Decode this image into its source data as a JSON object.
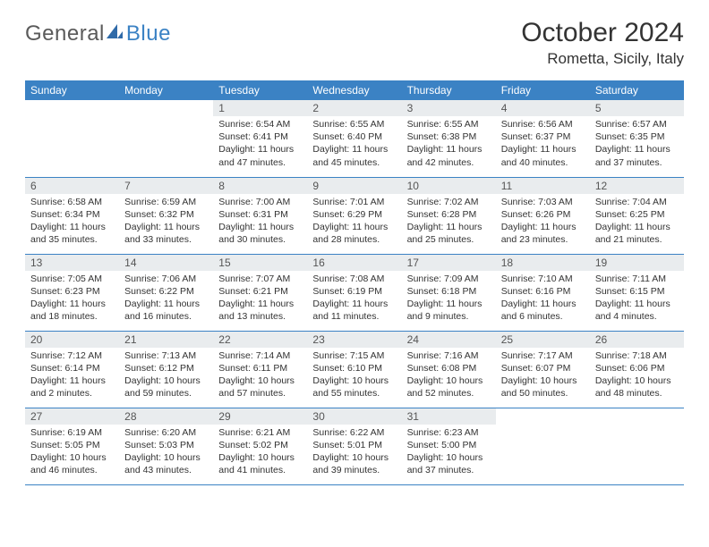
{
  "logo": {
    "text1": "General",
    "text2": "Blue"
  },
  "title": "October 2024",
  "location": "Rometta, Sicily, Italy",
  "colors": {
    "brand_blue": "#3b82c4",
    "header_bg": "#3b82c4",
    "header_text": "#ffffff",
    "daynum_bg": "#e9ecee",
    "text": "#333333",
    "page_bg": "#ffffff"
  },
  "days_of_week": [
    "Sunday",
    "Monday",
    "Tuesday",
    "Wednesday",
    "Thursday",
    "Friday",
    "Saturday"
  ],
  "weeks": [
    [
      null,
      null,
      {
        "n": "1",
        "sr": "Sunrise: 6:54 AM",
        "ss": "Sunset: 6:41 PM",
        "dl": "Daylight: 11 hours and 47 minutes."
      },
      {
        "n": "2",
        "sr": "Sunrise: 6:55 AM",
        "ss": "Sunset: 6:40 PM",
        "dl": "Daylight: 11 hours and 45 minutes."
      },
      {
        "n": "3",
        "sr": "Sunrise: 6:55 AM",
        "ss": "Sunset: 6:38 PM",
        "dl": "Daylight: 11 hours and 42 minutes."
      },
      {
        "n": "4",
        "sr": "Sunrise: 6:56 AM",
        "ss": "Sunset: 6:37 PM",
        "dl": "Daylight: 11 hours and 40 minutes."
      },
      {
        "n": "5",
        "sr": "Sunrise: 6:57 AM",
        "ss": "Sunset: 6:35 PM",
        "dl": "Daylight: 11 hours and 37 minutes."
      }
    ],
    [
      {
        "n": "6",
        "sr": "Sunrise: 6:58 AM",
        "ss": "Sunset: 6:34 PM",
        "dl": "Daylight: 11 hours and 35 minutes."
      },
      {
        "n": "7",
        "sr": "Sunrise: 6:59 AM",
        "ss": "Sunset: 6:32 PM",
        "dl": "Daylight: 11 hours and 33 minutes."
      },
      {
        "n": "8",
        "sr": "Sunrise: 7:00 AM",
        "ss": "Sunset: 6:31 PM",
        "dl": "Daylight: 11 hours and 30 minutes."
      },
      {
        "n": "9",
        "sr": "Sunrise: 7:01 AM",
        "ss": "Sunset: 6:29 PM",
        "dl": "Daylight: 11 hours and 28 minutes."
      },
      {
        "n": "10",
        "sr": "Sunrise: 7:02 AM",
        "ss": "Sunset: 6:28 PM",
        "dl": "Daylight: 11 hours and 25 minutes."
      },
      {
        "n": "11",
        "sr": "Sunrise: 7:03 AM",
        "ss": "Sunset: 6:26 PM",
        "dl": "Daylight: 11 hours and 23 minutes."
      },
      {
        "n": "12",
        "sr": "Sunrise: 7:04 AM",
        "ss": "Sunset: 6:25 PM",
        "dl": "Daylight: 11 hours and 21 minutes."
      }
    ],
    [
      {
        "n": "13",
        "sr": "Sunrise: 7:05 AM",
        "ss": "Sunset: 6:23 PM",
        "dl": "Daylight: 11 hours and 18 minutes."
      },
      {
        "n": "14",
        "sr": "Sunrise: 7:06 AM",
        "ss": "Sunset: 6:22 PM",
        "dl": "Daylight: 11 hours and 16 minutes."
      },
      {
        "n": "15",
        "sr": "Sunrise: 7:07 AM",
        "ss": "Sunset: 6:21 PM",
        "dl": "Daylight: 11 hours and 13 minutes."
      },
      {
        "n": "16",
        "sr": "Sunrise: 7:08 AM",
        "ss": "Sunset: 6:19 PM",
        "dl": "Daylight: 11 hours and 11 minutes."
      },
      {
        "n": "17",
        "sr": "Sunrise: 7:09 AM",
        "ss": "Sunset: 6:18 PM",
        "dl": "Daylight: 11 hours and 9 minutes."
      },
      {
        "n": "18",
        "sr": "Sunrise: 7:10 AM",
        "ss": "Sunset: 6:16 PM",
        "dl": "Daylight: 11 hours and 6 minutes."
      },
      {
        "n": "19",
        "sr": "Sunrise: 7:11 AM",
        "ss": "Sunset: 6:15 PM",
        "dl": "Daylight: 11 hours and 4 minutes."
      }
    ],
    [
      {
        "n": "20",
        "sr": "Sunrise: 7:12 AM",
        "ss": "Sunset: 6:14 PM",
        "dl": "Daylight: 11 hours and 2 minutes."
      },
      {
        "n": "21",
        "sr": "Sunrise: 7:13 AM",
        "ss": "Sunset: 6:12 PM",
        "dl": "Daylight: 10 hours and 59 minutes."
      },
      {
        "n": "22",
        "sr": "Sunrise: 7:14 AM",
        "ss": "Sunset: 6:11 PM",
        "dl": "Daylight: 10 hours and 57 minutes."
      },
      {
        "n": "23",
        "sr": "Sunrise: 7:15 AM",
        "ss": "Sunset: 6:10 PM",
        "dl": "Daylight: 10 hours and 55 minutes."
      },
      {
        "n": "24",
        "sr": "Sunrise: 7:16 AM",
        "ss": "Sunset: 6:08 PM",
        "dl": "Daylight: 10 hours and 52 minutes."
      },
      {
        "n": "25",
        "sr": "Sunrise: 7:17 AM",
        "ss": "Sunset: 6:07 PM",
        "dl": "Daylight: 10 hours and 50 minutes."
      },
      {
        "n": "26",
        "sr": "Sunrise: 7:18 AM",
        "ss": "Sunset: 6:06 PM",
        "dl": "Daylight: 10 hours and 48 minutes."
      }
    ],
    [
      {
        "n": "27",
        "sr": "Sunrise: 6:19 AM",
        "ss": "Sunset: 5:05 PM",
        "dl": "Daylight: 10 hours and 46 minutes."
      },
      {
        "n": "28",
        "sr": "Sunrise: 6:20 AM",
        "ss": "Sunset: 5:03 PM",
        "dl": "Daylight: 10 hours and 43 minutes."
      },
      {
        "n": "29",
        "sr": "Sunrise: 6:21 AM",
        "ss": "Sunset: 5:02 PM",
        "dl": "Daylight: 10 hours and 41 minutes."
      },
      {
        "n": "30",
        "sr": "Sunrise: 6:22 AM",
        "ss": "Sunset: 5:01 PM",
        "dl": "Daylight: 10 hours and 39 minutes."
      },
      {
        "n": "31",
        "sr": "Sunrise: 6:23 AM",
        "ss": "Sunset: 5:00 PM",
        "dl": "Daylight: 10 hours and 37 minutes."
      },
      null,
      null
    ]
  ]
}
